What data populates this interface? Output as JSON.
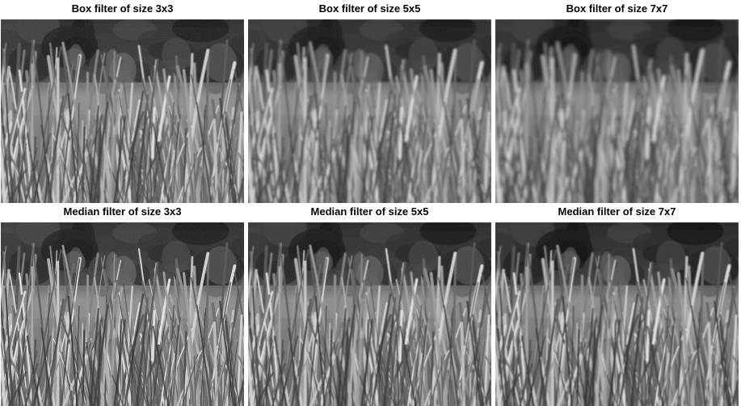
{
  "figure": {
    "panels": [
      {
        "title": "Box filter of size 3x3",
        "filter": "box",
        "kernel_size": 3,
        "image_icon": "grass-photo-icon"
      },
      {
        "title": "Box filter of size 5x5",
        "filter": "box",
        "kernel_size": 5,
        "image_icon": "grass-photo-icon"
      },
      {
        "title": "Box filter of size 7x7",
        "filter": "box",
        "kernel_size": 7,
        "image_icon": "grass-photo-icon"
      },
      {
        "title": "Median filter of size 3x3",
        "filter": "median",
        "kernel_size": 3,
        "image_icon": "grass-photo-icon"
      },
      {
        "title": "Median filter of size 5x5",
        "filter": "median",
        "kernel_size": 5,
        "image_icon": "grass-photo-icon"
      },
      {
        "title": "Median filter of size 7x7",
        "filter": "median",
        "kernel_size": 7,
        "image_icon": "grass-photo-icon"
      }
    ]
  }
}
